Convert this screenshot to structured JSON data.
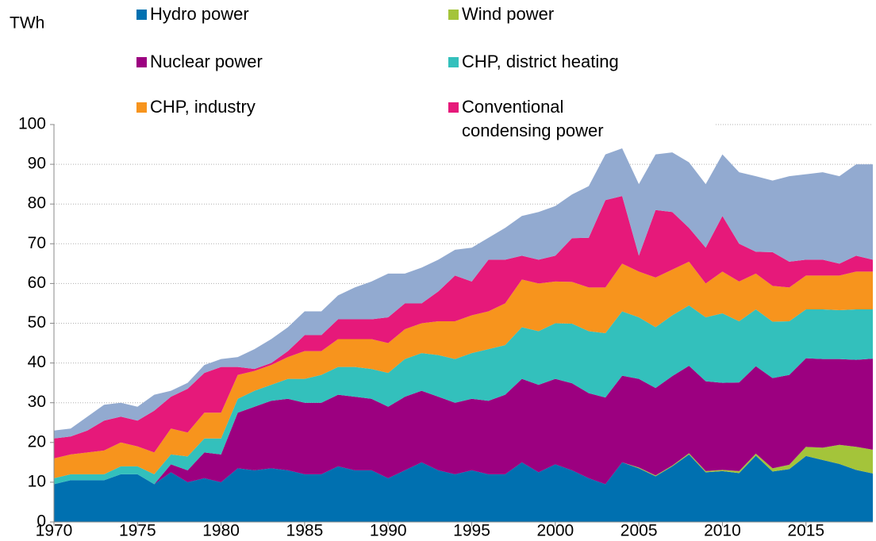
{
  "chart_data": {
    "type": "stacked_area",
    "ylabel": "TWh",
    "x": [
      1970,
      1971,
      1972,
      1973,
      1974,
      1975,
      1976,
      1977,
      1978,
      1979,
      1980,
      1981,
      1982,
      1983,
      1984,
      1985,
      1986,
      1987,
      1988,
      1989,
      1990,
      1991,
      1992,
      1993,
      1994,
      1995,
      1996,
      1997,
      1998,
      1999,
      2000,
      2001,
      2002,
      2003,
      2004,
      2005,
      2006,
      2007,
      2008,
      2009,
      2010,
      2011,
      2012,
      2013,
      2014,
      2015,
      2016,
      2017,
      2018,
      2019
    ],
    "series": [
      {
        "name": "Hydro power",
        "color": "#0070b0",
        "values": [
          9.5,
          10.5,
          10.5,
          10.5,
          12,
          12,
          9.5,
          12.5,
          10,
          11,
          10,
          13.5,
          13,
          13.5,
          13,
          12,
          12,
          14,
          13,
          13,
          11,
          13,
          15,
          13,
          12,
          13,
          12,
          12,
          15,
          12.5,
          14.5,
          13,
          11,
          9.5,
          15,
          13.5,
          11.5,
          14,
          17,
          12.5,
          12.8,
          12.3,
          16.7,
          12.7,
          13.3,
          16.6,
          15.6,
          14.6,
          13.1,
          12.2
        ]
      },
      {
        "name": "Wind power",
        "color": "#a4c43a",
        "values": [
          0,
          0,
          0,
          0,
          0,
          0,
          0,
          0,
          0,
          0,
          0,
          0,
          0,
          0,
          0,
          0,
          0,
          0,
          0,
          0,
          0,
          0,
          0,
          0,
          0,
          0,
          0,
          0,
          0,
          0,
          0,
          0,
          0,
          0,
          0,
          0.2,
          0.2,
          0.2,
          0.3,
          0.3,
          0.3,
          0.5,
          0.5,
          0.8,
          1.1,
          2.3,
          3.1,
          4.8,
          5.8,
          6.0
        ]
      },
      {
        "name": "Nuclear power",
        "color": "#9c0080",
        "values": [
          0,
          0,
          0,
          0,
          0,
          0,
          0,
          2,
          3,
          6.5,
          7,
          14,
          16,
          17,
          18,
          18,
          18,
          18,
          18.5,
          18,
          18,
          18.5,
          18,
          18.5,
          18,
          18,
          18.5,
          20,
          21,
          22,
          21.5,
          21.9,
          21.4,
          21.8,
          21.8,
          22.3,
          22,
          22.5,
          22,
          22.6,
          21.9,
          22.3,
          22,
          22.7,
          22.6,
          22.3,
          22.3,
          21.6,
          21.9,
          22.9
        ]
      },
      {
        "name": "CHP, district heating",
        "color": "#33c0bc",
        "values": [
          1.5,
          1.5,
          1.5,
          1.5,
          2,
          2,
          2.5,
          2.5,
          3.5,
          3.5,
          4,
          3.5,
          4,
          4,
          5,
          6,
          7,
          7,
          7.5,
          7.5,
          8.5,
          9.5,
          9.5,
          10.5,
          11,
          11.5,
          13,
          12.5,
          13,
          13.5,
          14,
          15,
          15.6,
          16.2,
          16.2,
          15.5,
          15.3,
          15.3,
          15.2,
          16.1,
          17.5,
          15.4,
          14.3,
          14.2,
          13.5,
          12.3,
          12.5,
          12.3,
          12.7,
          12.4
        ]
      },
      {
        "name": "CHP, industry",
        "color": "#f7941d",
        "values": [
          5,
          5,
          5.5,
          6,
          6,
          5,
          5.5,
          6.5,
          6,
          6.5,
          6.5,
          6,
          5,
          5,
          5.5,
          7,
          6,
          7,
          7,
          7.5,
          7.5,
          7.5,
          7.5,
          8.5,
          9.5,
          9.5,
          9.5,
          10.5,
          12,
          12,
          10.5,
          10.5,
          11,
          11.5,
          12,
          11.5,
          12.5,
          11.5,
          11,
          8.5,
          10.5,
          10,
          9,
          9,
          8.5,
          8.5,
          8.5,
          8.7,
          9.5,
          9.5
        ]
      },
      {
        "name": "Conventional condensing power",
        "color": "#e6197a",
        "values": [
          5,
          4.5,
          5.5,
          7.5,
          6.5,
          6.5,
          10.5,
          8,
          11,
          10,
          11.5,
          2,
          0.5,
          0.5,
          1.5,
          4,
          4,
          5,
          5,
          5,
          6.5,
          6.5,
          5,
          7.5,
          11.5,
          8.5,
          13,
          11,
          6,
          6,
          6.5,
          11,
          12.5,
          22,
          17,
          4,
          17,
          14.5,
          8.5,
          9,
          14,
          9.5,
          5.5,
          8.5,
          6.5,
          4,
          4,
          3,
          4,
          3
        ]
      },
      {
        "color": "#92aad0",
        "values": [
          2,
          2,
          3.5,
          4,
          3.5,
          3.5,
          4,
          1.5,
          1.5,
          2,
          2,
          2.5,
          5,
          6,
          6,
          6,
          6,
          6,
          8,
          9.5,
          11,
          7.5,
          9,
          8,
          6.5,
          8.5,
          5.5,
          8,
          10,
          12,
          12.5,
          11,
          13,
          11.5,
          12,
          18,
          14,
          15,
          16.5,
          16,
          15.5,
          18,
          19,
          18,
          21.5,
          21.5,
          22,
          22,
          23,
          24
        ]
      }
    ],
    "xlim": [
      1970,
      2019
    ],
    "xticks": [
      1970,
      1975,
      1980,
      1985,
      1990,
      1995,
      2000,
      2005,
      2010,
      2015
    ],
    "ylim": [
      0,
      100
    ],
    "yticks": [
      0,
      10,
      20,
      30,
      40,
      50,
      60,
      70,
      80,
      90,
      100
    ],
    "grid": true
  }
}
